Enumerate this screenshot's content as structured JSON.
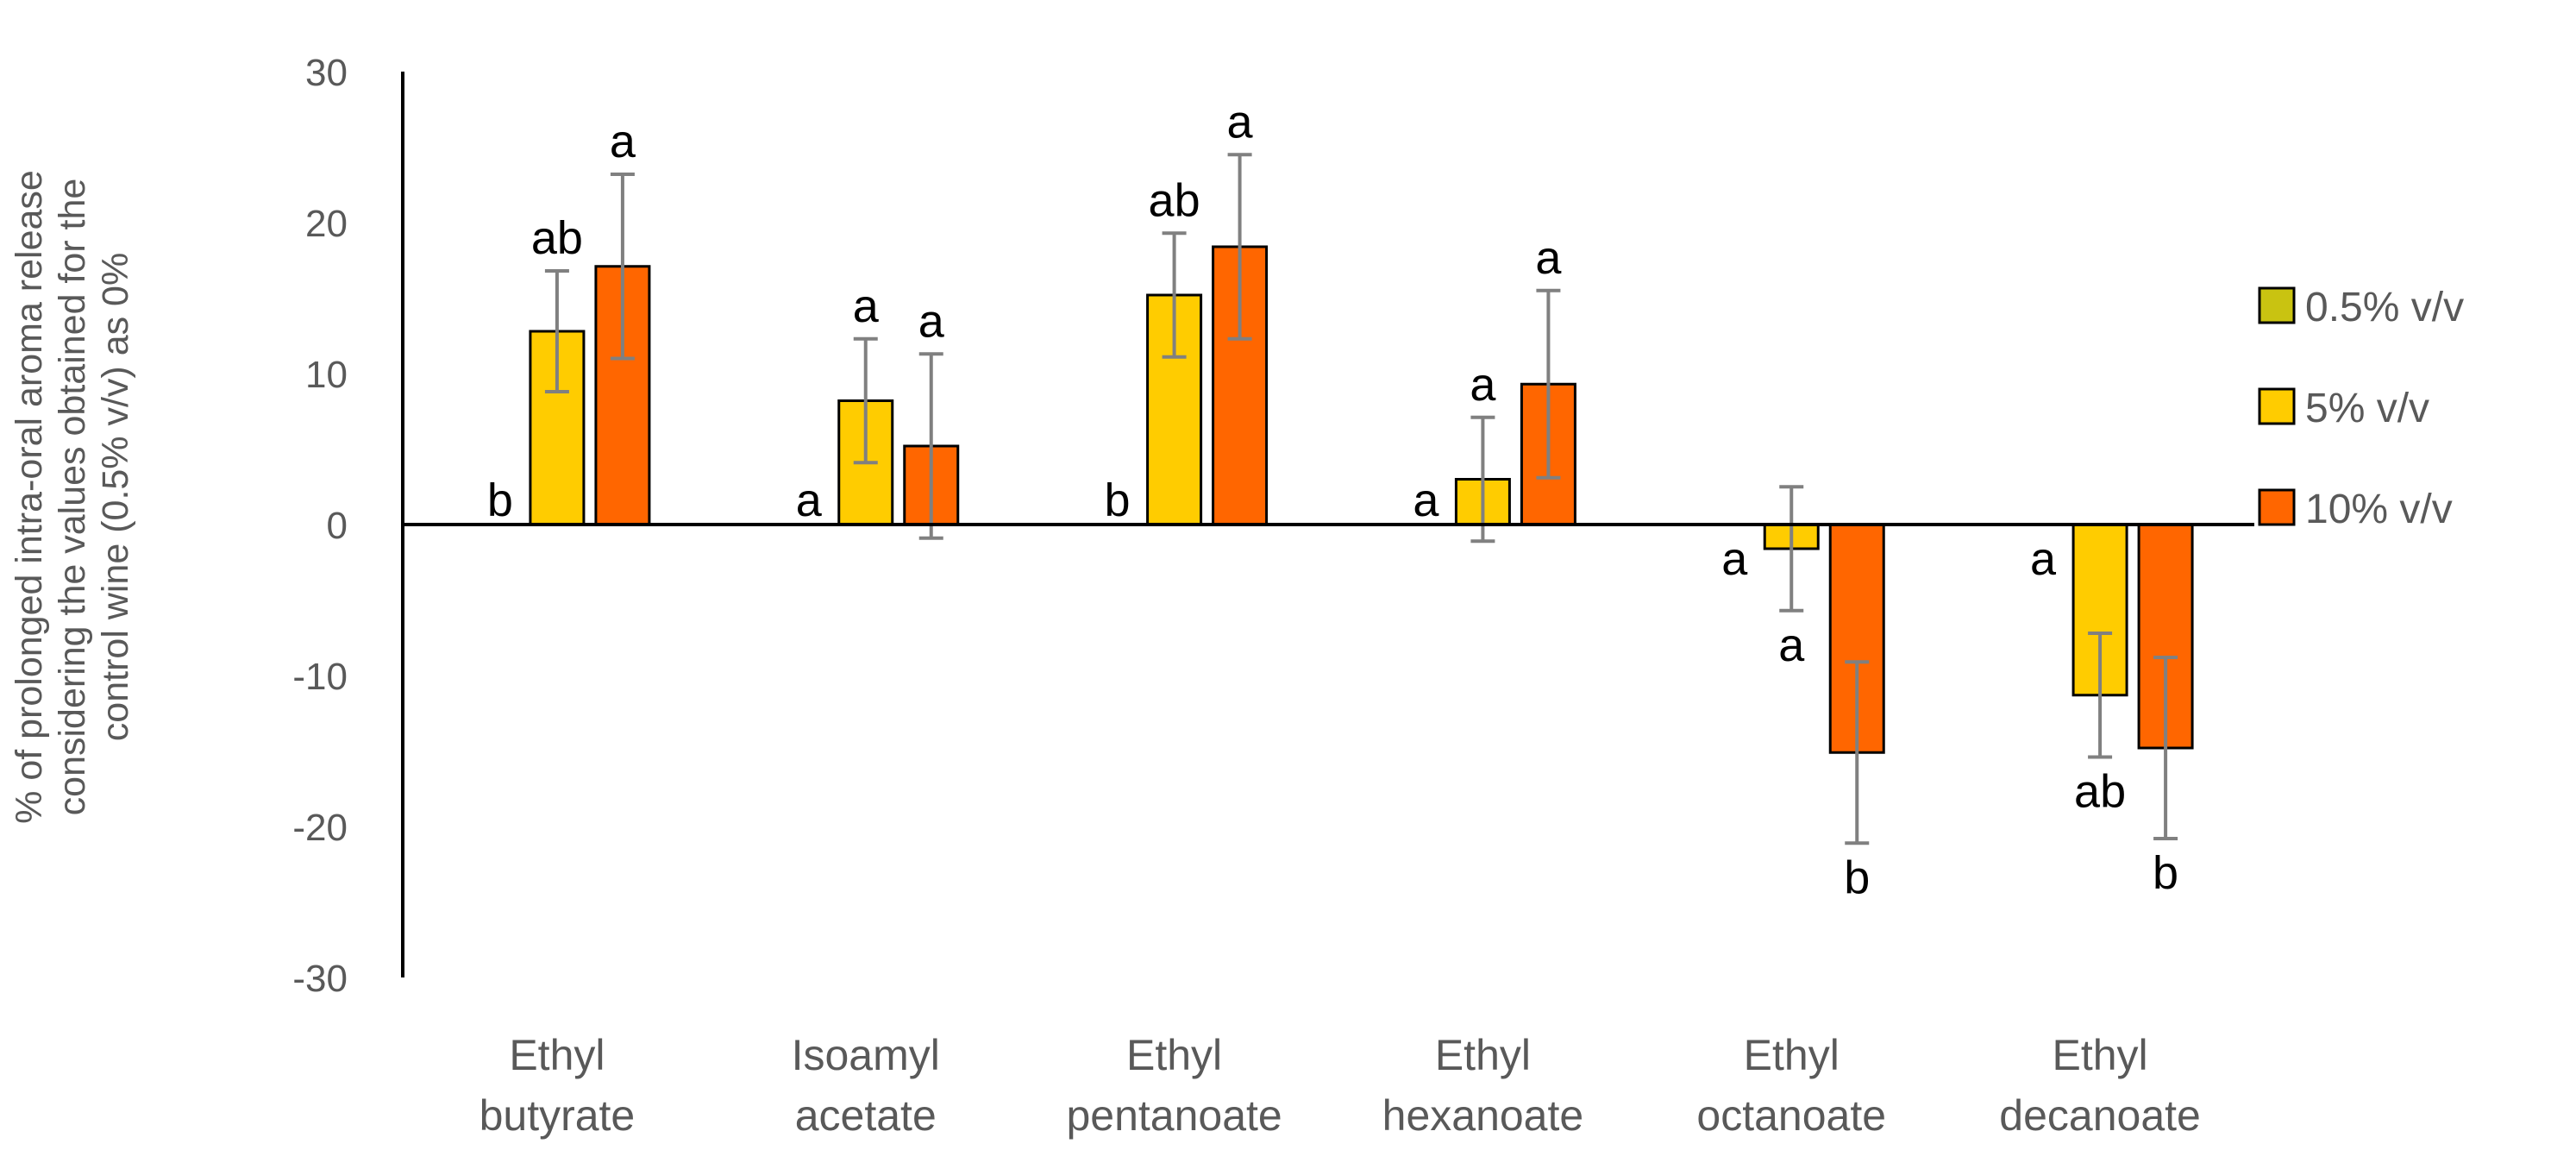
{
  "chart_data": {
    "type": "bar",
    "ylabel_lines": [
      "% of prolonged intra-oral aroma release",
      "considering the values obtained for the",
      "control wine (0.5% v/v) as 0%"
    ],
    "ylim": [
      -30,
      30
    ],
    "yticks": [
      30,
      20,
      10,
      0,
      -10,
      -20,
      -30
    ],
    "categories": [
      [
        "Ethyl",
        "butyrate"
      ],
      [
        "Isoamyl",
        "acetate"
      ],
      [
        "Ethyl",
        "pentanoate"
      ],
      [
        "Ethyl",
        "hexanoate"
      ],
      [
        "Ethyl",
        "octanoate"
      ],
      [
        "Ethyl",
        "decanoate"
      ]
    ],
    "series": [
      {
        "name": "0.5% v/v",
        "color": "#c9c311",
        "values": [
          0,
          0,
          0,
          0,
          0,
          0
        ],
        "errors": [
          null,
          null,
          null,
          null,
          null,
          null
        ],
        "labels": [
          "b",
          "a",
          "b",
          "a",
          "a",
          "a"
        ]
      },
      {
        "name": "5% v/v",
        "color": "#ffcc00",
        "values": [
          12.8,
          8.2,
          15.2,
          3.0,
          -1.6,
          -11.3
        ],
        "errors": [
          4.0,
          4.1,
          4.1,
          4.1,
          4.1,
          4.1
        ],
        "labels": [
          "ab",
          "a",
          "ab",
          "a",
          "a",
          "ab"
        ]
      },
      {
        "name": "10% v/v",
        "color": "#ff6600",
        "values": [
          17.1,
          5.2,
          18.4,
          9.3,
          -15.1,
          -14.8
        ],
        "errors": [
          6.1,
          6.1,
          6.1,
          6.2,
          6.0,
          6.0
        ],
        "labels": [
          "a",
          "a",
          "a",
          "a",
          "b",
          "b"
        ]
      }
    ]
  }
}
